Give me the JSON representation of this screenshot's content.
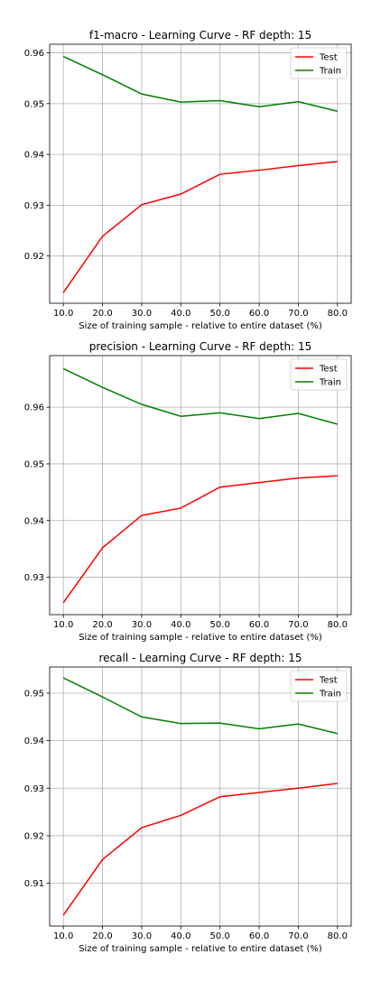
{
  "colors": {
    "test": "#ff0000",
    "train": "#008000",
    "grid": "#b0b0b0",
    "axes": "#000000"
  },
  "chart_data": [
    {
      "type": "line",
      "title": "f1-macro - Learning Curve - RF depth: 15",
      "xlabel": "Size of training sample - relative to entire dataset (%)",
      "ylabel": "",
      "x": [
        10,
        20,
        30,
        40,
        50,
        60,
        70,
        80
      ],
      "xtick_labels": [
        "10.0",
        "20.0",
        "30.0",
        "40.0",
        "50.0",
        "60.0",
        "70.0",
        "80.0"
      ],
      "ylim": [
        0.9107,
        0.9617
      ],
      "yticks": [
        0.92,
        0.93,
        0.94,
        0.95,
        0.96
      ],
      "ytick_labels": [
        "0.92",
        "0.93",
        "0.94",
        "0.95",
        "0.96"
      ],
      "grid": true,
      "legend_position": "top-right",
      "series": [
        {
          "name": "Test",
          "color": "#ff0000",
          "values": [
            0.9128,
            0.9239,
            0.9301,
            0.9322,
            0.9361,
            0.9369,
            0.9378,
            0.9386
          ]
        },
        {
          "name": "Train",
          "color": "#008000",
          "values": [
            0.9593,
            0.9557,
            0.9519,
            0.9503,
            0.9506,
            0.9494,
            0.9504,
            0.9485
          ]
        }
      ]
    },
    {
      "type": "line",
      "title": "precision - Learning Curve - RF depth: 15",
      "xlabel": "Size of training sample - relative to entire dataset (%)",
      "ylabel": "",
      "x": [
        10,
        20,
        30,
        40,
        50,
        60,
        70,
        80
      ],
      "xtick_labels": [
        "10.0",
        "20.0",
        "30.0",
        "40.0",
        "50.0",
        "60.0",
        "70.0",
        "80.0"
      ],
      "ylim": [
        0.9234,
        0.9691
      ],
      "yticks": [
        0.93,
        0.94,
        0.95,
        0.96
      ],
      "ytick_labels": [
        "0.93",
        "0.94",
        "0.95",
        "0.96"
      ],
      "grid": true,
      "legend_position": "top-right",
      "series": [
        {
          "name": "Test",
          "color": "#ff0000",
          "values": [
            0.9255,
            0.9352,
            0.9409,
            0.9422,
            0.9459,
            0.9467,
            0.9475,
            0.9479
          ]
        },
        {
          "name": "Train",
          "color": "#008000",
          "values": [
            0.9668,
            0.9635,
            0.9605,
            0.9584,
            0.959,
            0.958,
            0.9589,
            0.957
          ]
        }
      ]
    },
    {
      "type": "line",
      "title": "recall - Learning Curve - RF depth: 15",
      "xlabel": "Size of training sample - relative to entire dataset (%)",
      "ylabel": "",
      "x": [
        10,
        20,
        30,
        40,
        50,
        60,
        70,
        80
      ],
      "xtick_labels": [
        "10.0",
        "20.0",
        "30.0",
        "40.0",
        "50.0",
        "60.0",
        "70.0",
        "80.0"
      ],
      "ylim": [
        0.901,
        0.9555
      ],
      "yticks": [
        0.91,
        0.92,
        0.93,
        0.94,
        0.95
      ],
      "ytick_labels": [
        "0.91",
        "0.92",
        "0.93",
        "0.94",
        "0.95"
      ],
      "grid": true,
      "legend_position": "top-right",
      "series": [
        {
          "name": "Test",
          "color": "#ff0000",
          "values": [
            0.9033,
            0.915,
            0.9217,
            0.9243,
            0.9282,
            0.9291,
            0.93,
            0.931
          ]
        },
        {
          "name": "Train",
          "color": "#008000",
          "values": [
            0.9532,
            0.9492,
            0.945,
            0.9436,
            0.9437,
            0.9425,
            0.9435,
            0.9415
          ]
        }
      ]
    }
  ]
}
